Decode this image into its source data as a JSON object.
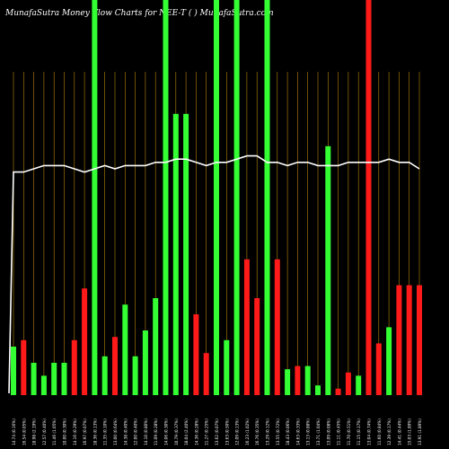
{
  "chart_data": {
    "type": "bar",
    "title": "MunafaSutra  Money Flow  Charts for NEE-T                    (  ) MunafaSutra.com",
    "categories": [
      "Mon 14 Apr",
      "Fri 11 Apr",
      "Thu 10 Apr",
      "Wed 09 Apr",
      "Tue 08 Apr",
      "Mon 07 Apr",
      "Fri 04 Apr",
      "Thu 03 Apr",
      "Wed 02 Apr",
      "Tue 01 Apr",
      "Mon 31 Mar",
      "Fri 28 Mar",
      "Thu 27 Mar",
      "Wed 26 Mar",
      "Tue 25 Mar",
      "Mon 24 Mar",
      "Fri 21 Mar",
      "Thu 20 Mar",
      "Wed 19 Mar",
      "Tue 18 Mar",
      "Mon 17 Mar",
      "Fri 14 Mar",
      "Thu 13 Mar",
      "Wed 12 Mar",
      "Tue 11 Mar",
      "Mon 10 Mar",
      "Fri 07 Mar",
      "Thu 06 Mar",
      "Wed 05 Mar",
      "Tue 04 Mar",
      "Mon 03 Mar",
      "Fri 28 Feb",
      "Thu 27 Feb",
      "Wed 26 Feb",
      "Tue 25 Feb",
      "Mon 24 Feb",
      "Fri 21 Feb",
      "Thu 20 Feb",
      "Wed 19 Feb",
      "Tue 18 Feb",
      "Mon 14 Feb"
    ],
    "tick_labels": [
      "14.74 (0.16%)",
      "16.54 (0.05%)",
      "18.98 (2.19%)",
      "12.57 (0.40%)",
      "11.46 (1.05%)",
      "10.00 (0.30%)",
      "14.16 (0.29%)",
      "16.97 (0.07%)",
      "18.36 (0.13%)",
      "11.35 (0.10%)",
      "13.00 (0.64%)",
      "14.38 (0.40%)",
      "12.00 (0.40%)",
      "14.10 (0.80%)",
      "11.09 (0.28%)",
      "14.06 (0.30%)",
      "10.79 (0.37%)",
      "18.04 (2.40%)",
      "14.36 (0.28%)",
      "11.27 (0.25%)",
      "13.62 (0.07%)",
      "13.63 (0.50%)",
      "12.09 (0.13%)",
      "16.23 (1.02%)",
      "16.76 (0.35%)",
      "13.29 (0.12%)",
      "13.55 (0.72%)",
      "18.43 (0.06%)",
      "14.63 (0.33%)",
      "13.13 (0.88%)",
      "13.71 (1.04%)",
      "13.09 (0.08%)",
      "11.11 (0.45%)",
      "11.70 (0.51%)",
      "11.15 (0.17%)",
      "13.04 (0.74%)",
      "11.60 (0.84%)",
      "12.39 (0.17%)",
      "14.41 (0.44%)",
      "15.03 (1.89%)",
      "13.91 (1.89%)"
    ],
    "series": [
      {
        "values": [
          0.15,
          0.17,
          0.1,
          0.06,
          0.1,
          0.1,
          0.17,
          0.33,
          1.0,
          0.12,
          0.18,
          0.28,
          0.12,
          0.2,
          0.3,
          1.0,
          0.87,
          0.87,
          0.25,
          0.13,
          1.0,
          0.17,
          1.0,
          0.42,
          0.3,
          1.0,
          0.42,
          0.08,
          0.09,
          0.09,
          0.03,
          0.77,
          0.02,
          0.07,
          0.06,
          1.0,
          0.16,
          0.21,
          0.34,
          0.34,
          0.34
        ],
        "colors": [
          "green",
          "red",
          "green",
          "green",
          "green",
          "green",
          "red",
          "red",
          "green",
          "green",
          "red",
          "green",
          "green",
          "green",
          "green",
          "green",
          "green",
          "green",
          "red",
          "red",
          "green",
          "green",
          "green",
          "red",
          "red",
          "green",
          "red",
          "green",
          "red",
          "green",
          "green",
          "green",
          "red",
          "red",
          "green",
          "red",
          "red",
          "green",
          "red",
          "red",
          "red"
        ]
      },
      {
        "type": "line",
        "values": [
          0.69,
          0.69,
          0.7,
          0.71,
          0.71,
          0.71,
          0.7,
          0.69,
          0.7,
          0.71,
          0.7,
          0.71,
          0.71,
          0.71,
          0.72,
          0.72,
          0.73,
          0.73,
          0.72,
          0.71,
          0.72,
          0.72,
          0.73,
          0.74,
          0.74,
          0.72,
          0.72,
          0.71,
          0.72,
          0.72,
          0.71,
          0.71,
          0.71,
          0.72,
          0.72,
          0.72,
          0.72,
          0.73,
          0.72,
          0.72,
          0.7
        ],
        "first_value": 0.0
      }
    ],
    "ylim": [
      0,
      1
    ],
    "colors": {
      "background": "#000000",
      "green": "#33ff33",
      "red": "#ff1a1a",
      "line": "#ffffff",
      "grid": "#b8860b",
      "text": "#ffffff"
    },
    "grid": true
  }
}
